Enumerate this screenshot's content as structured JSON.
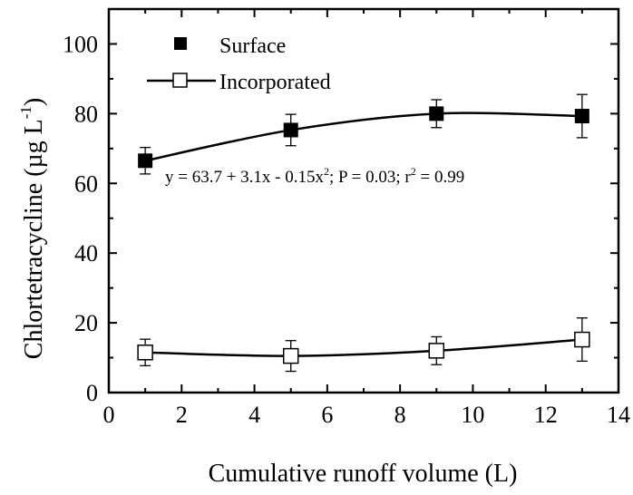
{
  "chart_data": {
    "type": "line",
    "xlabel": "Cumulative runoff volume (L)",
    "ylabel": {
      "main": "Chlortetracycline (µg L",
      "superscript": "-1",
      "close": ")"
    },
    "xlim": [
      0,
      14
    ],
    "ylim": [
      0,
      110
    ],
    "x_ticks": [
      0,
      2,
      4,
      6,
      8,
      10,
      12,
      14
    ],
    "y_ticks": [
      0,
      20,
      40,
      60,
      80,
      100
    ],
    "grid": false,
    "legend_position": "top-left",
    "annotation": {
      "prefix": "y = 63.7 + 3.1x - 0.15x",
      "superscript": "2",
      "middle": "; P = 0.03; r",
      "superscript2": "2",
      "suffix": " = 0.99"
    },
    "series": [
      {
        "name": "Surface",
        "marker": "filled-square",
        "color": "#000000",
        "x": [
          1,
          5,
          9,
          13
        ],
        "y": [
          66.5,
          75.3,
          80.0,
          79.3
        ],
        "error": [
          3.8,
          4.5,
          4.0,
          6.2
        ],
        "fit": "y = 63.7 + 3.1x - 0.15x^2"
      },
      {
        "name": "Incorporated",
        "marker": "open-square",
        "color": "#000000",
        "x": [
          1,
          5,
          9,
          13
        ],
        "y": [
          11.5,
          10.5,
          12.0,
          15.2
        ],
        "error": [
          3.8,
          4.4,
          4.0,
          6.2
        ],
        "fit": "smooth line"
      }
    ]
  }
}
